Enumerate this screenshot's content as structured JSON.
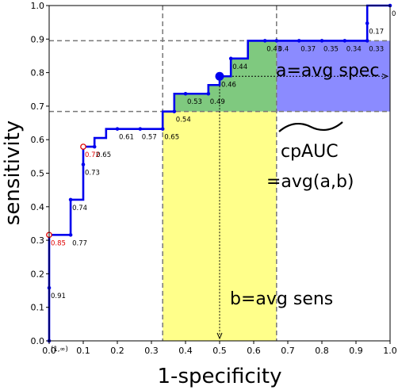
{
  "chart_data": {
    "type": "line",
    "xlabel": "1-specificity",
    "ylabel": "sensitivity",
    "xlim": [
      0,
      1
    ],
    "ylim": [
      0,
      1
    ],
    "xticks": [
      "0.0",
      "0.1",
      "0.2",
      "0.3",
      "0.4",
      "0.5",
      "0.6",
      "0.7",
      "0.8",
      "0.9",
      "1.0"
    ],
    "yticks": [
      "0.0",
      "0.1",
      "0.2",
      "0.3",
      "0.4",
      "0.5",
      "0.6",
      "0.7",
      "0.8",
      "0.9",
      "1.0"
    ],
    "grid": false,
    "roc": {
      "x": [
        0,
        0,
        0,
        0.063,
        0.063,
        0.1,
        0.1,
        0.1,
        0.1,
        0.133,
        0.133,
        0.167,
        0.167,
        0.333,
        0.333,
        0.367,
        0.367,
        0.467,
        0.467,
        0.5,
        0.5,
        0.533,
        0.533,
        0.583,
        0.583,
        0.933,
        0.933,
        1.0
      ],
      "y": [
        0,
        0.158,
        0.316,
        0.316,
        0.421,
        0.421,
        0.474,
        0.526,
        0.579,
        0.579,
        0.605,
        0.605,
        0.632,
        0.632,
        0.684,
        0.684,
        0.737,
        0.737,
        0.763,
        0.763,
        0.789,
        0.789,
        0.842,
        0.842,
        0.895,
        0.895,
        1.0,
        1.0
      ],
      "color": "#0000ee"
    },
    "thresholds": [
      {
        "x": 0,
        "y": 0.0,
        "label": "(1,∞)",
        "hollow": false
      },
      {
        "x": 0,
        "y": 0.158,
        "label": "0.91",
        "hollow": false
      },
      {
        "x": 0,
        "y": 0.316,
        "label": "0.85",
        "hollow": true
      },
      {
        "x": 0.063,
        "y": 0.316,
        "label": "0.77",
        "hollow": false
      },
      {
        "x": 0.063,
        "y": 0.421,
        "label": "0.74",
        "hollow": false
      },
      {
        "x": 0.1,
        "y": 0.526,
        "label": "0.73",
        "hollow": false
      },
      {
        "x": 0.1,
        "y": 0.579,
        "label": "0.72",
        "hollow": true
      },
      {
        "x": 0.133,
        "y": 0.579,
        "label": "0.65",
        "hollow": false
      },
      {
        "x": 0.2,
        "y": 0.632,
        "label": "0.61",
        "hollow": false
      },
      {
        "x": 0.267,
        "y": 0.632,
        "label": "0.57",
        "hollow": false
      },
      {
        "x": 0.333,
        "y": 0.632,
        "label": "0.65",
        "hollow": false
      },
      {
        "x": 0.367,
        "y": 0.684,
        "label": "0.54",
        "hollow": false
      },
      {
        "x": 0.4,
        "y": 0.737,
        "label": "0.53",
        "hollow": false
      },
      {
        "x": 0.467,
        "y": 0.737,
        "label": "0.49",
        "hollow": false
      },
      {
        "x": 0.5,
        "y": 0.789,
        "label": "0.46",
        "hollow": false
      },
      {
        "x": 0.533,
        "y": 0.842,
        "label": "0.44",
        "hollow": false
      },
      {
        "x": 0.633,
        "y": 0.895,
        "label": "0.43",
        "hollow": false
      },
      {
        "x": 0.667,
        "y": 0.895,
        "label": "0.4",
        "hollow": false
      },
      {
        "x": 0.733,
        "y": 0.895,
        "label": "0.37",
        "hollow": false
      },
      {
        "x": 0.8,
        "y": 0.895,
        "label": "0.35",
        "hollow": false
      },
      {
        "x": 0.867,
        "y": 0.895,
        "label": "0.34",
        "hollow": false
      },
      {
        "x": 0.933,
        "y": 0.895,
        "label": "0.33",
        "hollow": false
      },
      {
        "x": 0.933,
        "y": 0.947,
        "label": "0.17",
        "hollow": false
      },
      {
        "x": 1.0,
        "y": 1.0,
        "label": "0",
        "hollow": false
      }
    ],
    "highlight_point": {
      "x": 0.5,
      "y": 0.789
    },
    "regions": {
      "fpr_range": [
        0.333,
        0.667
      ],
      "tpr_range": [
        0.684,
        0.895
      ],
      "colors": {
        "green": "#7fc97f",
        "blue": "#8b8bff",
        "yellow": "#ffff8a"
      }
    },
    "annotations": {
      "a": "a=avg spec",
      "b": "b=avg sens",
      "cpauc_title": "cpAUC",
      "cpauc_eq": "=avg(a,b)"
    },
    "colors": {
      "curve": "#0000ee",
      "hollow": "#e00000",
      "label": "#000000",
      "dashed": "#777777"
    }
  }
}
